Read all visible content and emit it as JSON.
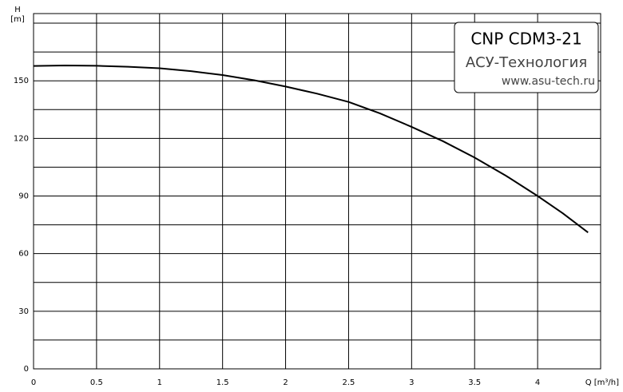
{
  "chart_data": {
    "type": "line",
    "y_label": "H",
    "y_unit": "[m]",
    "x_label": "Q [m³/h]",
    "legend_lines": [
      "CNP CDM3-21",
      "АСУ-Технология",
      "www.asu-tech.ru"
    ],
    "x": [
      0,
      0.25,
      0.5,
      0.75,
      1,
      1.25,
      1.5,
      1.75,
      2,
      2.25,
      2.5,
      2.75,
      3,
      3.25,
      3.5,
      3.75,
      4,
      4.2,
      4.4
    ],
    "series": [
      {
        "name": "CNP CDM3-21",
        "color": "#000000",
        "values": [
          157.7,
          158,
          157.8,
          157.3,
          156.5,
          155,
          153,
          150.3,
          147,
          143.3,
          139,
          133,
          126,
          118.5,
          110,
          100.5,
          90,
          81,
          71
        ]
      }
    ],
    "xlim": [
      0,
      4.5
    ],
    "ylim": [
      0,
      185
    ],
    "xticks": [
      0,
      0.5,
      1,
      1.5,
      2,
      2.5,
      3,
      3.5,
      4
    ],
    "yticks": [
      0,
      30,
      60,
      90,
      120,
      150
    ],
    "ygrid": [
      15,
      45,
      75,
      105,
      135,
      165,
      180
    ],
    "grid": true
  }
}
